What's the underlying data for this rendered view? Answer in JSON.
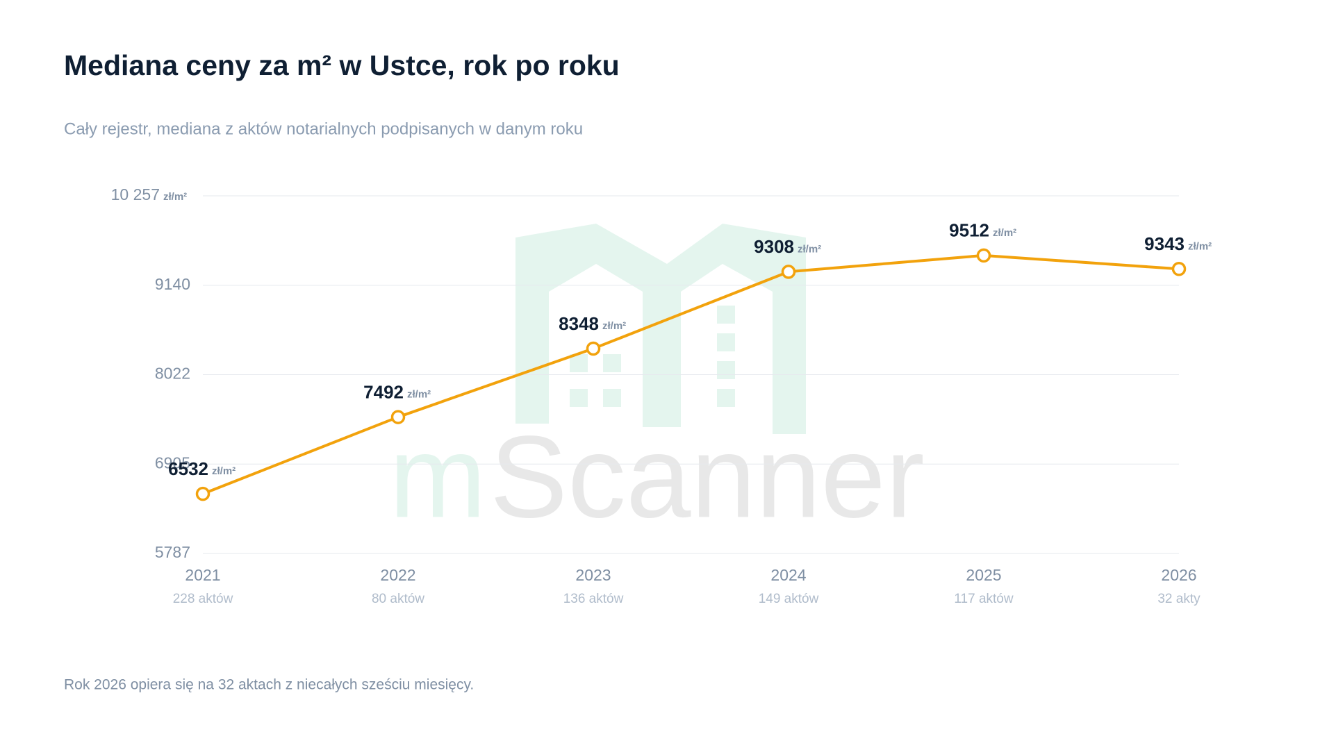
{
  "chart_data": {
    "type": "line",
    "title": "Mediana ceny za m² w Ustce, rok po roku",
    "subtitle": "Cały rejestr, mediana z aktów notarialnych podpisanych w danym roku",
    "unit": "zł/m²",
    "categories": [
      "2021",
      "2022",
      "2023",
      "2024",
      "2025",
      "2026"
    ],
    "subcategories": [
      "228 aktów",
      "80 aktów",
      "136 aktów",
      "149 aktów",
      "117 aktów",
      "32 akty"
    ],
    "series": [
      {
        "color": "#f2a20c",
        "values": [
          6532,
          7492,
          8348,
          9308,
          9512,
          9343
        ]
      }
    ],
    "ylim": [
      5787,
      10257
    ],
    "yticks": [
      5787,
      6905,
      8022,
      9140,
      {
        "value": 10257,
        "label": "10 257"
      }
    ],
    "grid": true,
    "footnote": "Rok 2026 opiera się na 32 aktach z niecałych sześciu miesięcy.",
    "watermark": {
      "prefix": "m",
      "name": "Scanner"
    }
  }
}
